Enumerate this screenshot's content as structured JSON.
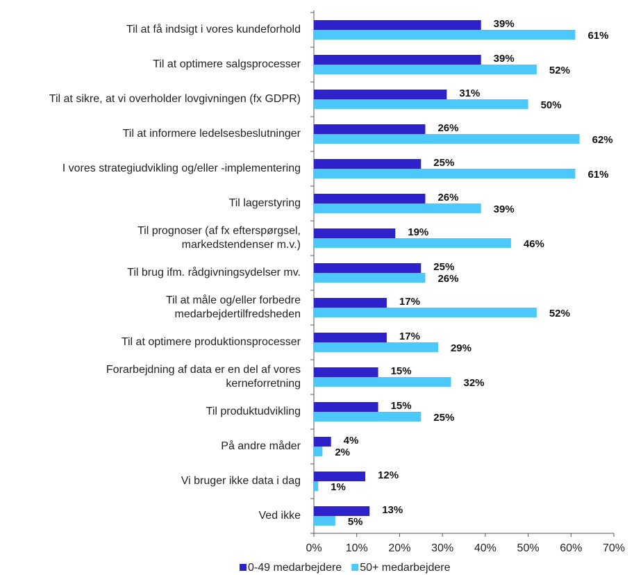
{
  "chart_data": {
    "type": "hbar",
    "categories": [
      "Til at få indsigt i vores kundeforhold",
      "Til at optimere salgsprocesser",
      "Til at sikre, at vi overholder lovgivningen (fx GDPR)",
      "Til at informere ledelsesbeslutninger",
      "I vores strategiudvikling og/eller -implementering",
      "Til lagerstyring",
      "Til prognoser (af fx efterspørgsel,\nmarkedstendenser m.v.)",
      "Til brug ifm. rådgivningsydelser mv.",
      "Til at måle og/eller forbedre\nmedarbejdertilfredsheden",
      "Til at optimere produktionsprocesser",
      "Forarbejdning af data er en del af vores\nkerneforretning",
      "Til produktudvikling",
      "På andre måder",
      "Vi bruger ikke data i dag",
      "Ved ikke"
    ],
    "series": [
      {
        "name": "0-49 medarbejdere",
        "color": "#2d22c9",
        "values": [
          39,
          39,
          31,
          26,
          25,
          26,
          19,
          25,
          17,
          17,
          15,
          15,
          4,
          12,
          13
        ],
        "value_labels": [
          "39%",
          "39%",
          "31%",
          "26%",
          "25%",
          "26%",
          "19%",
          "25%",
          "17%",
          "17%",
          "15%",
          "15%",
          "4%",
          "12%",
          "13%"
        ]
      },
      {
        "name": "50+ medarbejdere",
        "color": "#4cc9fa",
        "values": [
          61,
          52,
          50,
          62,
          61,
          39,
          46,
          26,
          52,
          29,
          32,
          25,
          2,
          1,
          5
        ],
        "value_labels": [
          "61%",
          "52%",
          "50%",
          "62%",
          "61%",
          "39%",
          "46%",
          "26%",
          "52%",
          "29%",
          "32%",
          "25%",
          "2%",
          "1%",
          "5%"
        ]
      }
    ],
    "xlim": [
      0,
      70
    ],
    "xticks": [
      {
        "value": 0,
        "label": "0%"
      },
      {
        "value": 10,
        "label": "10%"
      },
      {
        "value": 20,
        "label": "20%"
      },
      {
        "value": 30,
        "label": "30%"
      },
      {
        "value": 40,
        "label": "40%"
      },
      {
        "value": 50,
        "label": "50%"
      },
      {
        "value": 60,
        "label": "60%"
      },
      {
        "value": 70,
        "label": "70%"
      }
    ],
    "legend": "bottom"
  }
}
